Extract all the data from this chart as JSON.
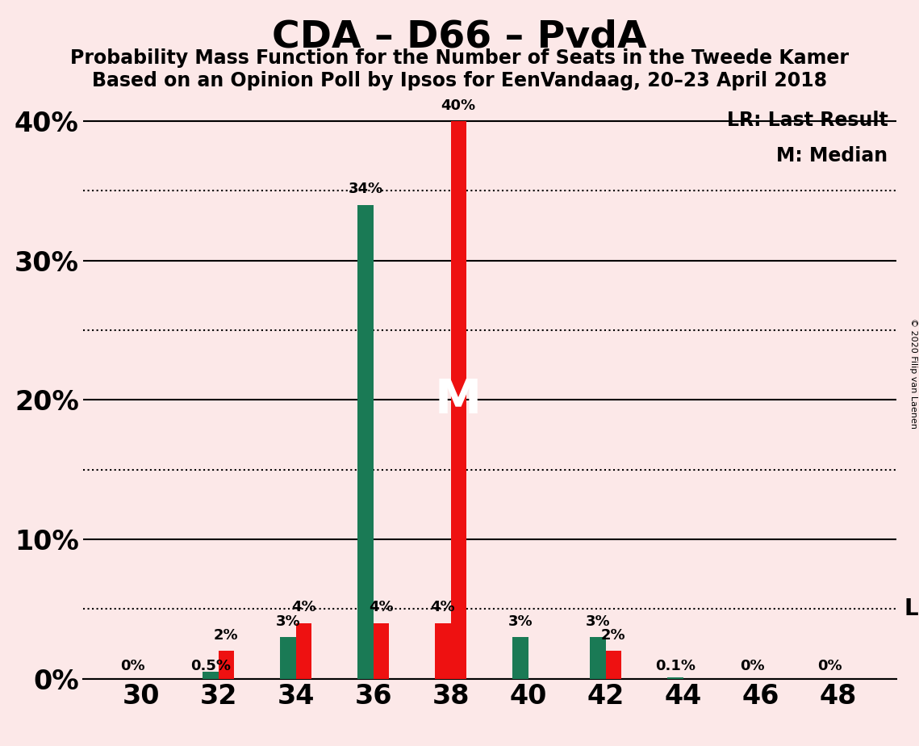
{
  "title": "CDA – D66 – PvdA",
  "subtitle1": "Probability Mass Function for the Number of Seats in the Tweede Kamer",
  "subtitle2": "Based on an Opinion Poll by Ipsos for EenVandaag, 20–23 April 2018",
  "copyright": "© 2020 Filip van Laenen",
  "background_color": "#fce8e8",
  "bar_color_green": "#1a7a55",
  "bar_color_red": "#ee1111",
  "seats": [
    30,
    32,
    34,
    36,
    38,
    40,
    42,
    44,
    46,
    48
  ],
  "pmf": [
    0.0,
    0.5,
    3.0,
    34.0,
    4.0,
    3.0,
    3.0,
    0.1,
    0.0,
    0.0
  ],
  "lr": [
    0.0,
    2.0,
    4.0,
    4.0,
    40.0,
    0.0,
    2.0,
    0.0,
    0.0,
    0.0
  ],
  "pmf_labels": [
    "0%",
    "0.5%",
    "3%",
    "34%",
    "4%",
    "3%",
    "3%",
    "0.1%",
    "0%",
    "0%"
  ],
  "lr_labels": [
    "",
    "2%",
    "4%",
    "4%",
    "40%",
    "",
    "2%",
    "",
    "",
    ""
  ],
  "median_seat": 38,
  "ylim": [
    0,
    42
  ],
  "yticks": [
    0,
    10,
    20,
    30,
    40
  ],
  "ytick_labels": [
    "0%",
    "10%",
    "20%",
    "30%",
    "40%"
  ],
  "xtick_positions": [
    30,
    32,
    34,
    36,
    38,
    40,
    42,
    44,
    46,
    48
  ],
  "lr_dotted_y": 5.0,
  "dotted_line_levels": [
    5.0,
    15.0,
    25.0,
    35.0
  ],
  "solid_line_levels": [
    0,
    10,
    20,
    30,
    40
  ],
  "title_fontsize": 34,
  "subtitle_fontsize": 17,
  "axis_tick_fontsize": 24,
  "bar_label_fontsize": 13,
  "legend_fontsize": 17,
  "lr_annotation_fontsize": 20,
  "median_label_fontsize": 42,
  "bar_width": 0.8
}
